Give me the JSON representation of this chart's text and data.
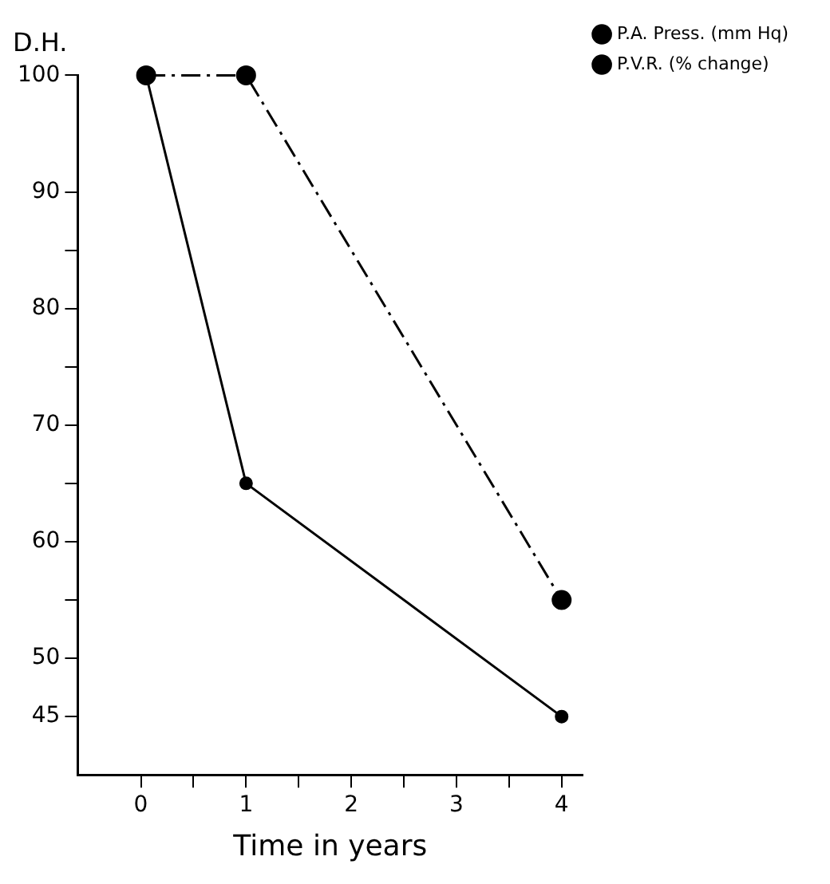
{
  "chart_data": {
    "type": "line",
    "title": "D.H.",
    "xlabel": "Time in years",
    "series": [
      {
        "name": "P.A. Press. (mm Hq)",
        "color": "#000000",
        "x": [
          0.05,
          1,
          4
        ],
        "values": [
          100,
          65,
          45
        ],
        "line_style": "solid"
      },
      {
        "name": "P.V.R. (% change)",
        "color": "#000000",
        "x": [
          0.05,
          1,
          4
        ],
        "values": [
          100,
          100,
          55
        ],
        "line_style": "dashed"
      }
    ],
    "xlim": [
      -0.6,
      4.2
    ],
    "xticks": [
      0,
      {
        "value": 0.5,
        "label": null
      },
      1,
      {
        "value": 1.5,
        "label": null
      },
      2,
      {
        "value": 2.5,
        "label": null
      },
      3,
      {
        "value": 3.5,
        "label": null
      },
      4
    ],
    "ylim": [
      40,
      100
    ],
    "yticks": [
      45,
      50,
      {
        "value": 55,
        "label": null
      },
      60,
      {
        "value": 65,
        "label": null
      },
      70,
      {
        "value": 75,
        "label": null
      },
      80,
      {
        "value": 85,
        "label": null
      },
      90,
      100
    ],
    "grid": false,
    "legend": "right",
    "marker": "circle"
  }
}
